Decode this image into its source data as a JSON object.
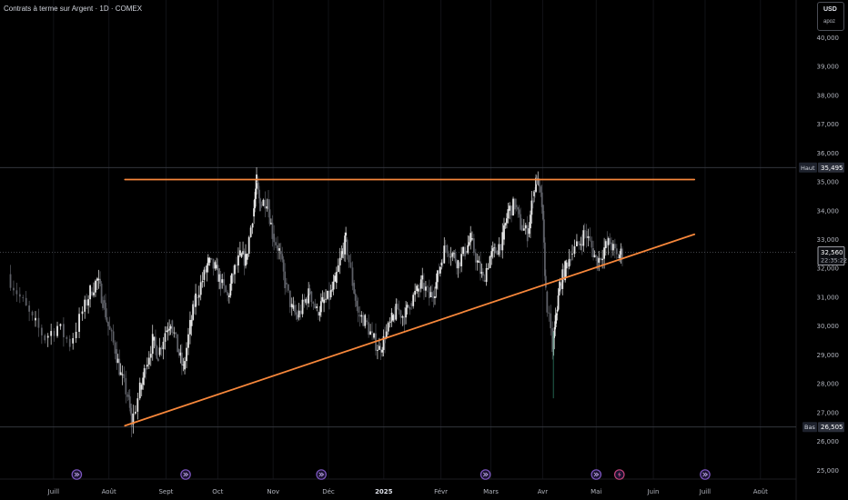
{
  "header": {
    "title": "Contrats à terme sur Argent · 1D · COMEX",
    "currency": "USD",
    "currency_sub": "apoz"
  },
  "colors": {
    "background": "#000000",
    "candle_up": "#e8e8e8",
    "candle_down": "#5d5f66",
    "trendline": "#f7873b",
    "axis_text": "#b2b5be",
    "event_icon": "#7e57c2"
  },
  "chart_data": {
    "type": "candlestick",
    "ylim": [
      24.7,
      41.3
    ],
    "y_ticks": [
      "25,000",
      "26,000",
      "27,000",
      "28,000",
      "29,000",
      "30,000",
      "31,000",
      "32,000",
      "33,000",
      "34,000",
      "35,000",
      "36,000",
      "37,000",
      "38,000",
      "39,000",
      "40,000"
    ],
    "x_ticks": [
      "Juill",
      "Août",
      "Sept",
      "Oct",
      "Nov",
      "Déc",
      "2025",
      "Févr",
      "Mars",
      "Avr",
      "Mai",
      "Juin",
      "Juill",
      "Août"
    ],
    "x_tick_dates": [
      "2024-07-01",
      "2024-08-01",
      "2024-09-02",
      "2024-10-01",
      "2024-11-01",
      "2024-12-02",
      "2025-01-02",
      "2025-02-03",
      "2025-03-03",
      "2025-04-01",
      "2025-05-01",
      "2025-06-02",
      "2025-07-01",
      "2025-08-01"
    ],
    "high_label": {
      "label": "Haut",
      "value": "35,495"
    },
    "low_label": {
      "label": "Bas",
      "value": "26,505"
    },
    "last_price": {
      "value": "32,560",
      "countdown": "22:35:22"
    },
    "trendlines": [
      {
        "name": "resistance",
        "from": [
          "2024-08-10",
          35.08
        ],
        "to": [
          "2025-06-25",
          35.08
        ]
      },
      {
        "name": "support",
        "from": [
          "2024-08-10",
          26.55
        ],
        "to": [
          "2025-06-25",
          33.18
        ]
      }
    ],
    "events": [
      {
        "date": "2024-07-14",
        "type": "forward"
      },
      {
        "date": "2024-09-13",
        "type": "forward"
      },
      {
        "date": "2024-11-28",
        "type": "forward"
      },
      {
        "date": "2025-02-28",
        "type": "forward"
      },
      {
        "date": "2025-05-01",
        "type": "forward"
      },
      {
        "date": "2025-05-14",
        "type": "lightning"
      },
      {
        "date": "2025-07-01",
        "type": "forward"
      }
    ],
    "series": [
      {
        "values": [
          [
            "2024-06-06",
            31.8
          ],
          [
            "2024-06-13",
            31.0
          ],
          [
            "2024-06-20",
            30.2
          ],
          [
            "2024-06-27",
            29.6
          ],
          [
            "2024-07-04",
            30.0
          ],
          [
            "2024-07-11",
            29.4
          ],
          [
            "2024-07-18",
            30.5
          ],
          [
            "2024-07-22",
            31.2
          ],
          [
            "2024-07-26",
            31.6
          ],
          [
            "2024-07-29",
            30.9
          ],
          [
            "2024-08-01",
            30.0
          ],
          [
            "2024-08-05",
            29.2
          ],
          [
            "2024-08-08",
            28.3
          ],
          [
            "2024-08-12",
            27.6
          ],
          [
            "2024-08-14",
            26.6
          ],
          [
            "2024-08-19",
            27.8
          ],
          [
            "2024-08-22",
            28.6
          ],
          [
            "2024-08-26",
            29.5
          ],
          [
            "2024-08-29",
            29.0
          ],
          [
            "2024-09-02",
            29.8
          ],
          [
            "2024-09-05",
            30.2
          ],
          [
            "2024-09-09",
            29.2
          ],
          [
            "2024-09-12",
            28.5
          ],
          [
            "2024-09-16",
            30.0
          ],
          [
            "2024-09-19",
            31.0
          ],
          [
            "2024-09-23",
            31.6
          ],
          [
            "2024-09-26",
            32.2
          ],
          [
            "2024-09-30",
            32.0
          ],
          [
            "2024-10-03",
            31.5
          ],
          [
            "2024-10-07",
            31.0
          ],
          [
            "2024-10-10",
            31.8
          ],
          [
            "2024-10-14",
            32.4
          ],
          [
            "2024-10-17",
            32.3
          ],
          [
            "2024-10-21",
            33.8
          ],
          [
            "2024-10-23",
            35.0
          ],
          [
            "2024-10-25",
            34.2
          ],
          [
            "2024-10-29",
            34.4
          ],
          [
            "2024-11-01",
            33.2
          ],
          [
            "2024-11-05",
            32.6
          ],
          [
            "2024-11-08",
            31.5
          ],
          [
            "2024-11-12",
            30.6
          ],
          [
            "2024-11-15",
            30.3
          ],
          [
            "2024-11-19",
            30.8
          ],
          [
            "2024-11-22",
            31.2
          ],
          [
            "2024-11-26",
            30.5
          ],
          [
            "2024-11-29",
            30.8
          ],
          [
            "2024-12-03",
            31.0
          ],
          [
            "2024-12-06",
            31.5
          ],
          [
            "2024-12-10",
            32.5
          ],
          [
            "2024-12-12",
            33.0
          ],
          [
            "2024-12-16",
            31.5
          ],
          [
            "2024-12-19",
            30.4
          ],
          [
            "2024-12-23",
            30.2
          ],
          [
            "2024-12-27",
            29.6
          ],
          [
            "2024-12-31",
            29.2
          ],
          [
            "2025-01-03",
            29.6
          ],
          [
            "2025-01-07",
            30.2
          ],
          [
            "2025-01-10",
            30.6
          ],
          [
            "2025-01-14",
            30.3
          ],
          [
            "2025-01-17",
            30.8
          ],
          [
            "2025-01-21",
            31.2
          ],
          [
            "2025-01-24",
            31.5
          ],
          [
            "2025-01-28",
            31.0
          ],
          [
            "2025-01-31",
            31.3
          ],
          [
            "2025-02-03",
            32.1
          ],
          [
            "2025-02-06",
            32.8
          ],
          [
            "2025-02-10",
            32.5
          ],
          [
            "2025-02-13",
            32.2
          ],
          [
            "2025-02-17",
            32.6
          ],
          [
            "2025-02-20",
            33.0
          ],
          [
            "2025-02-24",
            32.2
          ],
          [
            "2025-02-27",
            31.6
          ],
          [
            "2025-03-03",
            32.4
          ],
          [
            "2025-03-06",
            32.6
          ],
          [
            "2025-03-10",
            33.0
          ],
          [
            "2025-03-13",
            34.0
          ],
          [
            "2025-03-17",
            34.2
          ],
          [
            "2025-03-20",
            33.5
          ],
          [
            "2025-03-24",
            33.2
          ],
          [
            "2025-03-27",
            34.5
          ],
          [
            "2025-03-29",
            35.1
          ],
          [
            "2025-04-01",
            34.2
          ],
          [
            "2025-04-03",
            31.2
          ],
          [
            "2025-04-07",
            29.2
          ],
          [
            "2025-04-09",
            30.5
          ],
          [
            "2025-04-11",
            31.4
          ],
          [
            "2025-04-14",
            32.0
          ],
          [
            "2025-04-17",
            32.5
          ],
          [
            "2025-04-22",
            32.8
          ],
          [
            "2025-04-25",
            33.3
          ],
          [
            "2025-04-29",
            32.7
          ],
          [
            "2025-05-02",
            32.2
          ],
          [
            "2025-05-06",
            32.7
          ],
          [
            "2025-05-09",
            32.9
          ],
          [
            "2025-05-13",
            32.4
          ],
          [
            "2025-05-16",
            32.56
          ]
        ]
      }
    ]
  }
}
